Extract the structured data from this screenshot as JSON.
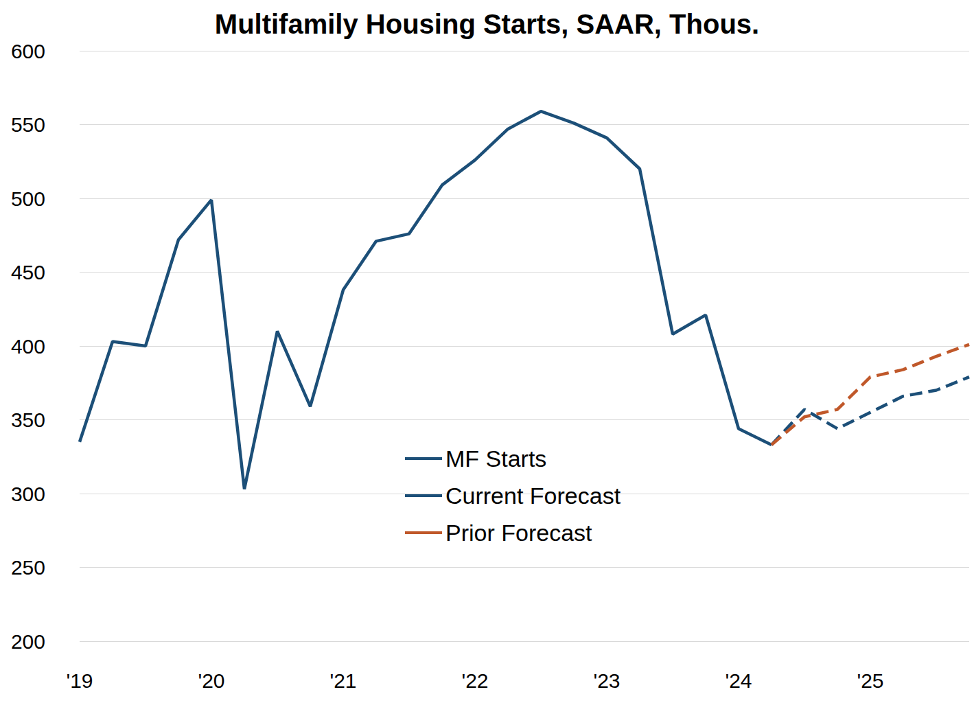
{
  "chart_data": {
    "type": "line",
    "title": "Multifamily Housing Starts, SAAR, Thous.",
    "categories": [
      "'19",
      null,
      null,
      null,
      "'20",
      null,
      null,
      null,
      "'21",
      null,
      null,
      null,
      "'22",
      null,
      null,
      null,
      "'23",
      null,
      null,
      null,
      "'24",
      null,
      null,
      null,
      "'25",
      null,
      null,
      null
    ],
    "series": [
      {
        "name": "MF Starts",
        "color": "#1c4f78",
        "line_style": "solid",
        "marker": "none",
        "values": [
          335,
          403,
          400,
          472,
          499,
          303,
          410,
          359,
          438,
          471,
          476,
          509,
          526,
          547,
          559,
          551,
          541,
          520,
          408,
          421,
          344,
          333,
          null,
          null,
          null,
          null,
          null,
          null
        ]
      },
      {
        "name": "Current Forecast",
        "color": "#1c4f78",
        "line_style": "dashed",
        "marker": "none",
        "values": [
          null,
          null,
          null,
          null,
          null,
          null,
          null,
          null,
          null,
          null,
          null,
          null,
          null,
          null,
          null,
          null,
          null,
          null,
          null,
          null,
          null,
          333,
          357,
          344,
          355,
          366,
          370,
          379
        ]
      },
      {
        "name": "Prior Forecast",
        "color": "#c0582a",
        "line_style": "dashed",
        "marker": "none",
        "values": [
          null,
          null,
          null,
          null,
          null,
          null,
          null,
          null,
          null,
          null,
          null,
          null,
          null,
          null,
          null,
          null,
          null,
          null,
          null,
          null,
          null,
          333,
          352,
          357,
          379,
          384,
          393,
          401
        ]
      }
    ],
    "ylim": [
      200,
      600
    ],
    "yticks": [
      200,
      250,
      300,
      350,
      400,
      450,
      500,
      550,
      600
    ],
    "grid": true,
    "legend": "center"
  }
}
